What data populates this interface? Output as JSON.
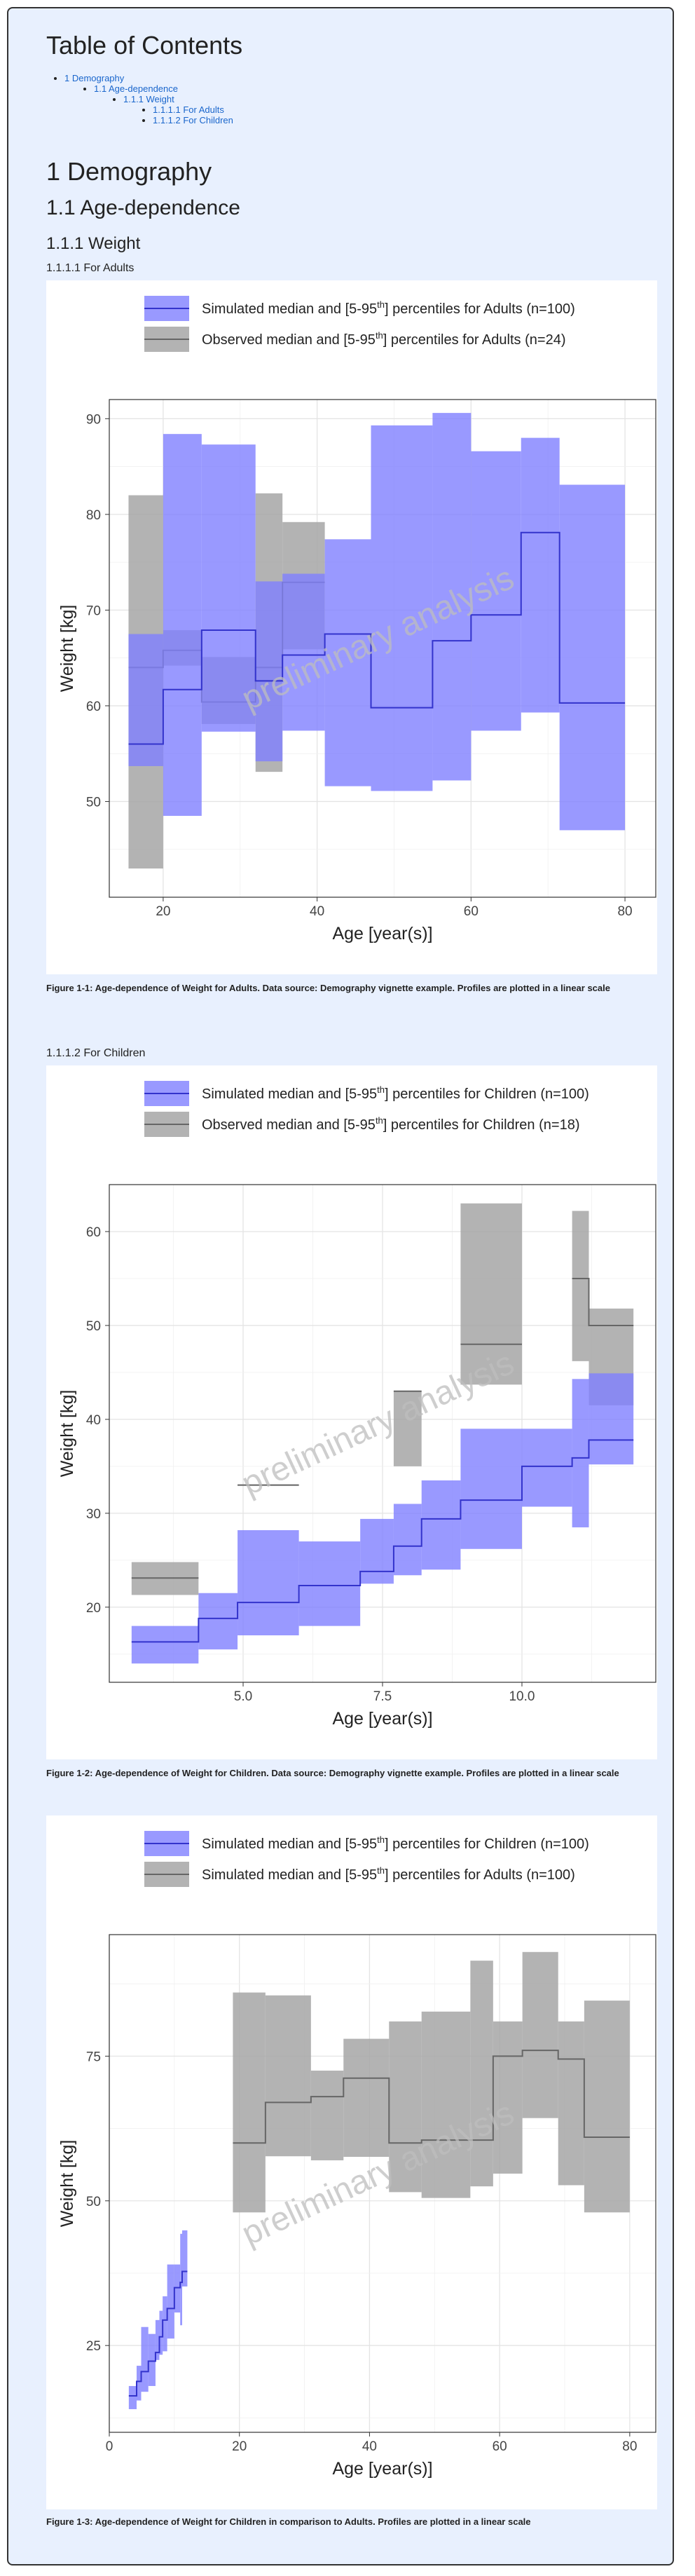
{
  "toc": {
    "title": "Table of Contents",
    "items": [
      {
        "label": "1 Demography",
        "level": 0
      },
      {
        "label": "1.1 Age-dependence",
        "level": 1
      },
      {
        "label": "1.1.1 Weight",
        "level": 2
      },
      {
        "label": "1.1.1.1 For Adults",
        "level": 3
      },
      {
        "label": "1.1.1.2 For Children",
        "level": 3
      }
    ]
  },
  "headings": {
    "h1": "1 Demography",
    "h2": "1.1 Age-dependence",
    "h3": "1.1.1 Weight",
    "h4_adults": "1.1.1.1 For Adults",
    "h4_children": "1.1.1.2 For Children"
  },
  "watermark": "preliminary analysis",
  "colors": {
    "simulated": "#8080ff",
    "simulated_line": "#3333cc",
    "observed": "#a6a6a6",
    "observed_line": "#666666"
  },
  "chart_data": [
    {
      "type": "area",
      "ylabel": "Weight [kg]",
      "xlabel": "Age [year(s)]",
      "xlim": [
        13,
        84
      ],
      "ylim": [
        40,
        92
      ],
      "xticks": [
        20,
        40,
        60,
        80
      ],
      "yticks": [
        50,
        60,
        70,
        80,
        90
      ],
      "grid": true,
      "legend_position": "top",
      "caption": "Figure 1-1: Age-dependence of Weight for Adults. Data source: Demography vignette example. Profiles are plotted in a linear scale",
      "series": [
        {
          "name": "Simulated median and [5-95th] percentiles for Adults (n=100)",
          "legend_prefix": "Simulated median and [5-95",
          "legend_sup": "th",
          "legend_suffix": "] percentiles for Adults (n=100)",
          "style": "simulated",
          "bins": [
            {
              "x0": 15.5,
              "x1": 20.0,
              "low": 53.7,
              "median": 56.0,
              "high": 67.5
            },
            {
              "x0": 20.0,
              "x1": 25.0,
              "low": 48.5,
              "median": 61.7,
              "high": 88.4
            },
            {
              "x0": 25.0,
              "x1": 32.0,
              "low": 57.3,
              "median": 67.9,
              "high": 87.3
            },
            {
              "x0": 32.0,
              "x1": 35.5,
              "low": 54.2,
              "median": 62.6,
              "high": 73.0
            },
            {
              "x0": 35.5,
              "x1": 41.0,
              "low": 57.4,
              "median": 65.3,
              "high": 73.8
            },
            {
              "x0": 41.0,
              "x1": 47.0,
              "low": 51.6,
              "median": 67.5,
              "high": 77.4
            },
            {
              "x0": 47.0,
              "x1": 55.0,
              "low": 51.1,
              "median": 59.8,
              "high": 89.3
            },
            {
              "x0": 55.0,
              "x1": 60.0,
              "low": 52.2,
              "median": 66.8,
              "high": 90.6
            },
            {
              "x0": 60.0,
              "x1": 66.5,
              "low": 57.4,
              "median": 69.5,
              "high": 86.6
            },
            {
              "x0": 66.5,
              "x1": 71.5,
              "low": 59.3,
              "median": 78.1,
              "high": 88.0
            },
            {
              "x0": 71.5,
              "x1": 80.0,
              "low": 47.0,
              "median": 60.3,
              "high": 83.1
            }
          ]
        },
        {
          "name": "Observed median and [5-95th] percentiles for Adults (n=24)",
          "legend_prefix": "Observed median and [5-95",
          "legend_sup": "th",
          "legend_suffix": "] percentiles for Adults (n=24)",
          "style": "observed",
          "bins": [
            {
              "x0": 15.5,
              "x1": 20.0,
              "low": 43.0,
              "median": 64.0,
              "high": 82.0
            },
            {
              "x0": 20.0,
              "x1": 25.0,
              "low": 64.2,
              "median": 65.8,
              "high": 67.9
            },
            {
              "x0": 25.0,
              "x1": 32.0,
              "low": 58.1,
              "median": 60.4,
              "high": 65.1
            },
            {
              "x0": 32.0,
              "x1": 35.5,
              "low": 53.1,
              "median": 64.0,
              "high": 82.2
            },
            {
              "x0": 35.5,
              "x1": 41.0,
              "low": 65.9,
              "median": 72.9,
              "high": 79.2
            }
          ]
        }
      ]
    },
    {
      "type": "area",
      "ylabel": "Weight [kg]",
      "xlabel": "Age [year(s)]",
      "xlim": [
        2.6,
        12.4
      ],
      "ylim": [
        12,
        65
      ],
      "xticks": [
        5.0,
        7.5,
        10.0
      ],
      "xtick_labels": [
        "5.0",
        "7.5",
        "10.0"
      ],
      "yticks": [
        20,
        30,
        40,
        50,
        60
      ],
      "grid": true,
      "legend_position": "top",
      "caption": "Figure 1-2: Age-dependence of Weight for Children. Data source: Demography vignette example. Profiles are plotted in a linear scale",
      "series": [
        {
          "name": "Simulated median and [5-95th] percentiles for Children (n=100)",
          "legend_prefix": "Simulated median and [5-95",
          "legend_sup": "th",
          "legend_suffix": "] percentiles for Children (n=100)",
          "style": "simulated",
          "bins": [
            {
              "x0": 3.0,
              "x1": 4.2,
              "low": 14.0,
              "median": 16.3,
              "high": 18.0
            },
            {
              "x0": 4.2,
              "x1": 4.9,
              "low": 15.5,
              "median": 18.8,
              "high": 21.5
            },
            {
              "x0": 4.9,
              "x1": 6.0,
              "low": 17.0,
              "median": 20.5,
              "high": 28.2
            },
            {
              "x0": 6.0,
              "x1": 7.1,
              "low": 18.0,
              "median": 22.3,
              "high": 27.0
            },
            {
              "x0": 7.1,
              "x1": 7.7,
              "low": 22.5,
              "median": 23.8,
              "high": 29.4
            },
            {
              "x0": 7.7,
              "x1": 8.2,
              "low": 23.4,
              "median": 26.5,
              "high": 31.0
            },
            {
              "x0": 8.2,
              "x1": 8.9,
              "low": 24.0,
              "median": 29.4,
              "high": 33.5
            },
            {
              "x0": 8.9,
              "x1": 10.0,
              "low": 26.2,
              "median": 31.4,
              "high": 39.0
            },
            {
              "x0": 10.0,
              "x1": 10.9,
              "low": 30.7,
              "median": 35.0,
              "high": 39.0
            },
            {
              "x0": 10.9,
              "x1": 11.2,
              "low": 28.5,
              "median": 35.9,
              "high": 44.3
            },
            {
              "x0": 11.2,
              "x1": 12.0,
              "low": 35.2,
              "median": 37.8,
              "high": 44.9
            }
          ]
        },
        {
          "name": "Observed median and [5-95th] percentiles for Children (n=18)",
          "legend_prefix": "Observed median and [5-95",
          "legend_sup": "th",
          "legend_suffix": "] percentiles for Children (n=18)",
          "style": "observed",
          "bins": [
            {
              "x0": 3.0,
              "x1": 4.2,
              "low": 21.3,
              "median": 23.1,
              "high": 24.8
            },
            {
              "x0": 4.9,
              "x1": 6.0,
              "low": 33.0,
              "median": 33.0,
              "high": 33.0
            },
            {
              "x0": 7.7,
              "x1": 8.2,
              "low": 35.0,
              "median": 43.0,
              "high": 43.0
            },
            {
              "x0": 8.9,
              "x1": 10.0,
              "low": 43.7,
              "median": 48.0,
              "high": 63.0
            },
            {
              "x0": 10.9,
              "x1": 11.2,
              "low": 46.2,
              "median": 55.0,
              "high": 62.2
            },
            {
              "x0": 11.2,
              "x1": 12.0,
              "low": 41.5,
              "median": 50.0,
              "high": 51.8
            }
          ]
        }
      ]
    },
    {
      "type": "area",
      "ylabel": "Weight [kg]",
      "xlabel": "Age [year(s)]",
      "xlim": [
        0,
        84
      ],
      "ylim": [
        10,
        96
      ],
      "xticks": [
        0,
        20,
        40,
        60,
        80
      ],
      "yticks": [
        25,
        50,
        75
      ],
      "grid": true,
      "legend_position": "top",
      "caption": "Figure 1-3: Age-dependence of Weight for Children in comparison to Adults. Profiles are plotted in a linear scale",
      "series": [
        {
          "name": "Simulated median and [5-95th] percentiles for Children (n=100)",
          "legend_prefix": "Simulated median and [5-95",
          "legend_sup": "th",
          "legend_suffix": "] percentiles for Children (n=100)",
          "style": "simulated",
          "bins": [
            {
              "x0": 3.0,
              "x1": 4.2,
              "low": 14.0,
              "median": 16.3,
              "high": 18.0
            },
            {
              "x0": 4.2,
              "x1": 4.9,
              "low": 15.5,
              "median": 18.8,
              "high": 21.5
            },
            {
              "x0": 4.9,
              "x1": 6.0,
              "low": 17.0,
              "median": 20.5,
              "high": 28.2
            },
            {
              "x0": 6.0,
              "x1": 7.1,
              "low": 18.0,
              "median": 22.3,
              "high": 27.0
            },
            {
              "x0": 7.1,
              "x1": 7.7,
              "low": 22.5,
              "median": 23.8,
              "high": 29.4
            },
            {
              "x0": 7.7,
              "x1": 8.2,
              "low": 23.4,
              "median": 26.5,
              "high": 31.0
            },
            {
              "x0": 8.2,
              "x1": 8.9,
              "low": 24.0,
              "median": 29.4,
              "high": 33.5
            },
            {
              "x0": 8.9,
              "x1": 10.0,
              "low": 26.2,
              "median": 31.4,
              "high": 39.0
            },
            {
              "x0": 10.0,
              "x1": 10.9,
              "low": 30.7,
              "median": 35.0,
              "high": 39.0
            },
            {
              "x0": 10.9,
              "x1": 11.2,
              "low": 28.5,
              "median": 35.9,
              "high": 44.3
            },
            {
              "x0": 11.2,
              "x1": 12.0,
              "low": 35.2,
              "median": 37.8,
              "high": 44.9
            }
          ]
        },
        {
          "name": "Simulated median and [5-95th] percentiles for Adults (n=100)",
          "legend_prefix": "Simulated median and [5-95",
          "legend_sup": "th",
          "legend_suffix": "] percentiles for Adults (n=100)",
          "style": "observed",
          "bins": [
            {
              "x0": 19.0,
              "x1": 24.0,
              "low": 48.0,
              "median": 60.0,
              "high": 86.0
            },
            {
              "x0": 24.0,
              "x1": 31.0,
              "low": 57.7,
              "median": 67.0,
              "high": 85.5
            },
            {
              "x0": 31.0,
              "x1": 36.0,
              "low": 57.0,
              "median": 68.0,
              "high": 72.5
            },
            {
              "x0": 36.0,
              "x1": 43.0,
              "low": 57.6,
              "median": 71.2,
              "high": 78.0
            },
            {
              "x0": 43.0,
              "x1": 48.0,
              "low": 51.5,
              "median": 60.0,
              "high": 81.0
            },
            {
              "x0": 48.0,
              "x1": 55.5,
              "low": 50.5,
              "median": 60.5,
              "high": 82.7
            },
            {
              "x0": 55.5,
              "x1": 59.0,
              "low": 52.5,
              "median": 60.5,
              "high": 91.5
            },
            {
              "x0": 59.0,
              "x1": 63.5,
              "low": 54.7,
              "median": 75.0,
              "high": 81.0
            },
            {
              "x0": 63.5,
              "x1": 69.0,
              "low": 64.3,
              "median": 76.0,
              "high": 93.0
            },
            {
              "x0": 69.0,
              "x1": 73.0,
              "low": 52.7,
              "median": 74.5,
              "high": 81.0
            },
            {
              "x0": 73.0,
              "x1": 80.0,
              "low": 48.0,
              "median": 61.0,
              "high": 84.6
            }
          ]
        }
      ]
    }
  ]
}
